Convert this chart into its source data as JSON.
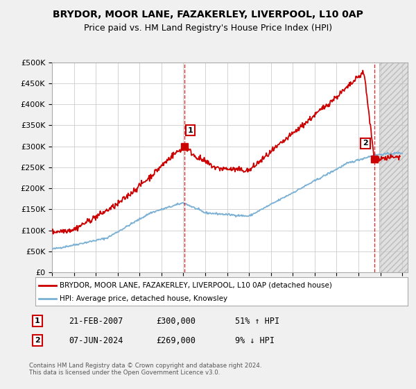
{
  "title": "BRYDOR, MOOR LANE, FAZAKERLEY, LIVERPOOL, L10 0AP",
  "subtitle": "Price paid vs. HM Land Registry's House Price Index (HPI)",
  "ylabel_ticks": [
    "£0",
    "£50K",
    "£100K",
    "£150K",
    "£200K",
    "£250K",
    "£300K",
    "£350K",
    "£400K",
    "£450K",
    "£500K"
  ],
  "ytick_values": [
    0,
    50000,
    100000,
    150000,
    200000,
    250000,
    300000,
    350000,
    400000,
    450000,
    500000
  ],
  "ylim": [
    0,
    500000
  ],
  "xlim_start": 1995.0,
  "xlim_end": 2027.5,
  "hpi_color": "#7ab0d4",
  "price_color": "#cc0000",
  "marker1_date": 2007.13,
  "marker1_price": 300000,
  "marker1_label": "1",
  "marker2_date": 2024.44,
  "marker2_price": 269000,
  "marker2_label": "2",
  "legend_line1": "BRYDOR, MOOR LANE, FAZAKERLEY, LIVERPOOL, L10 0AP (detached house)",
  "legend_line2": "HPI: Average price, detached house, Knowsley",
  "footer": "Contains HM Land Registry data © Crown copyright and database right 2024.\nThis data is licensed under the Open Government Licence v3.0.",
  "background_color": "#f0f0f0",
  "plot_background": "#ffffff",
  "grid_color": "#cccccc",
  "hatch_color": "#e0e0e0",
  "title_fontsize": 10,
  "subtitle_fontsize": 9
}
